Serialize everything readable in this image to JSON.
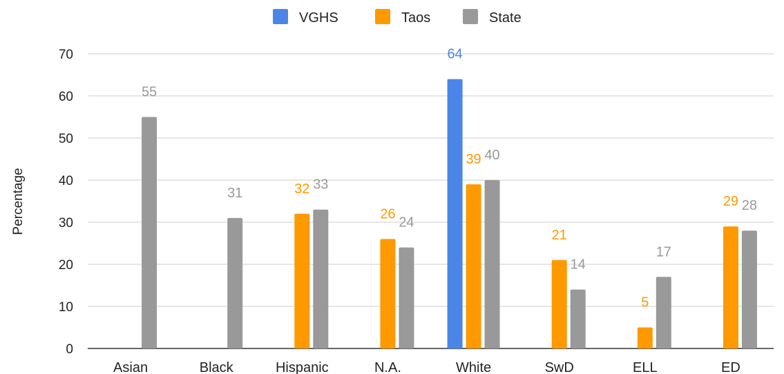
{
  "chart_data": {
    "type": "bar",
    "title": "",
    "xlabel": "",
    "ylabel": "Percentage",
    "ylim": [
      0,
      70
    ],
    "yticks": [
      0,
      10,
      20,
      30,
      40,
      50,
      60,
      70
    ],
    "grid": true,
    "legend_position": "top-center",
    "categories": [
      "Asian",
      "Black",
      "Hispanic",
      "N.A.",
      "White",
      "SwD",
      "ELL",
      "ED"
    ],
    "series": [
      {
        "name": "VGHS",
        "color": "#4a86e8",
        "values": [
          null,
          null,
          null,
          null,
          64,
          null,
          null,
          null
        ]
      },
      {
        "name": "Taos",
        "color": "#ff9900",
        "values": [
          null,
          null,
          32,
          26,
          39,
          21,
          5,
          29
        ]
      },
      {
        "name": "State",
        "color": "#999999",
        "values": [
          55,
          31,
          33,
          24,
          40,
          14,
          17,
          28
        ]
      }
    ]
  }
}
